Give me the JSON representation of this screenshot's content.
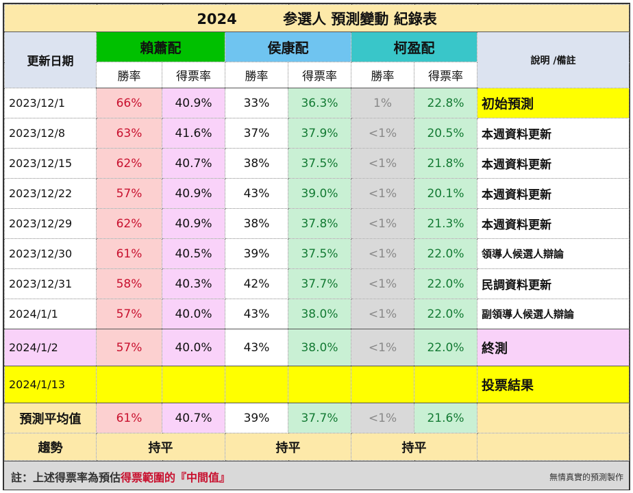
{
  "title": {
    "year": "2024",
    "text": "参選人  預測變動 紀錄表"
  },
  "headers": {
    "date": "更新日期",
    "lai": "賴蕭配",
    "hou": "侯康配",
    "ko": "柯盈配",
    "note": "說明 /備註",
    "win": "勝率",
    "vote": "得票率"
  },
  "rows": [
    {
      "date": "2023/12/1",
      "lai_win": "66%",
      "lai_vote": "40.9%",
      "hou_win": "33%",
      "hou_vote": "36.3%",
      "ko_win": "1%",
      "ko_vote": "22.8%",
      "note": "初始預測"
    },
    {
      "date": "2023/12/8",
      "lai_win": "63%",
      "lai_vote": "41.6%",
      "hou_win": "37%",
      "hou_vote": "37.9%",
      "ko_win": "<1%",
      "ko_vote": "20.5%",
      "note": "本週資料更新"
    },
    {
      "date": "2023/12/15",
      "lai_win": "62%",
      "lai_vote": "40.7%",
      "hou_win": "38%",
      "hou_vote": "37.5%",
      "ko_win": "<1%",
      "ko_vote": "21.8%",
      "note": "本週資料更新"
    },
    {
      "date": "2023/12/22",
      "lai_win": "57%",
      "lai_vote": "40.9%",
      "hou_win": "43%",
      "hou_vote": "39.0%",
      "ko_win": "<1%",
      "ko_vote": "20.1%",
      "note": "本週資料更新"
    },
    {
      "date": "2023/12/29",
      "lai_win": "62%",
      "lai_vote": "40.9%",
      "hou_win": "38%",
      "hou_vote": "37.8%",
      "ko_win": "<1%",
      "ko_vote": "21.3%",
      "note": "本週資料更新"
    },
    {
      "date": "2023/12/30",
      "lai_win": "61%",
      "lai_vote": "40.5%",
      "hou_win": "39%",
      "hou_vote": "37.5%",
      "ko_win": "<1%",
      "ko_vote": "22.0%",
      "note": "領導人候選人辯論"
    },
    {
      "date": "2023/12/31",
      "lai_win": "58%",
      "lai_vote": "40.3%",
      "hou_win": "42%",
      "hou_vote": "37.7%",
      "ko_win": "<1%",
      "ko_vote": "22.0%",
      "note": "民調資料更新"
    },
    {
      "date": "2024/1/1",
      "lai_win": "57%",
      "lai_vote": "40.0%",
      "hou_win": "43%",
      "hou_vote": "38.0%",
      "ko_win": "<1%",
      "ko_vote": "22.0%",
      "note": "副領導人候選人辯論"
    }
  ],
  "final": {
    "date": "2024/1/2",
    "lai_win": "57%",
    "lai_vote": "40.0%",
    "hou_win": "43%",
    "hou_vote": "38.0%",
    "ko_win": "<1%",
    "ko_vote": "22.0%",
    "note": "終測"
  },
  "result": {
    "date": "2024/1/13",
    "note": "投票結果"
  },
  "average": {
    "label": "預測平均值",
    "lai_win": "61%",
    "lai_vote": "40.7%",
    "hou_win": "39%",
    "hou_vote": "37.7%",
    "ko_win": "<1%",
    "ko_vote": "21.6%"
  },
  "trend": {
    "label": "趨勢",
    "lai": "持平",
    "hou": "持平",
    "ko": "持平"
  },
  "footnote": {
    "prefix": "註：上述得票率為預估",
    "highlight": "得票範圍的『中間值』",
    "credit": "無情真實的預測製作"
  }
}
